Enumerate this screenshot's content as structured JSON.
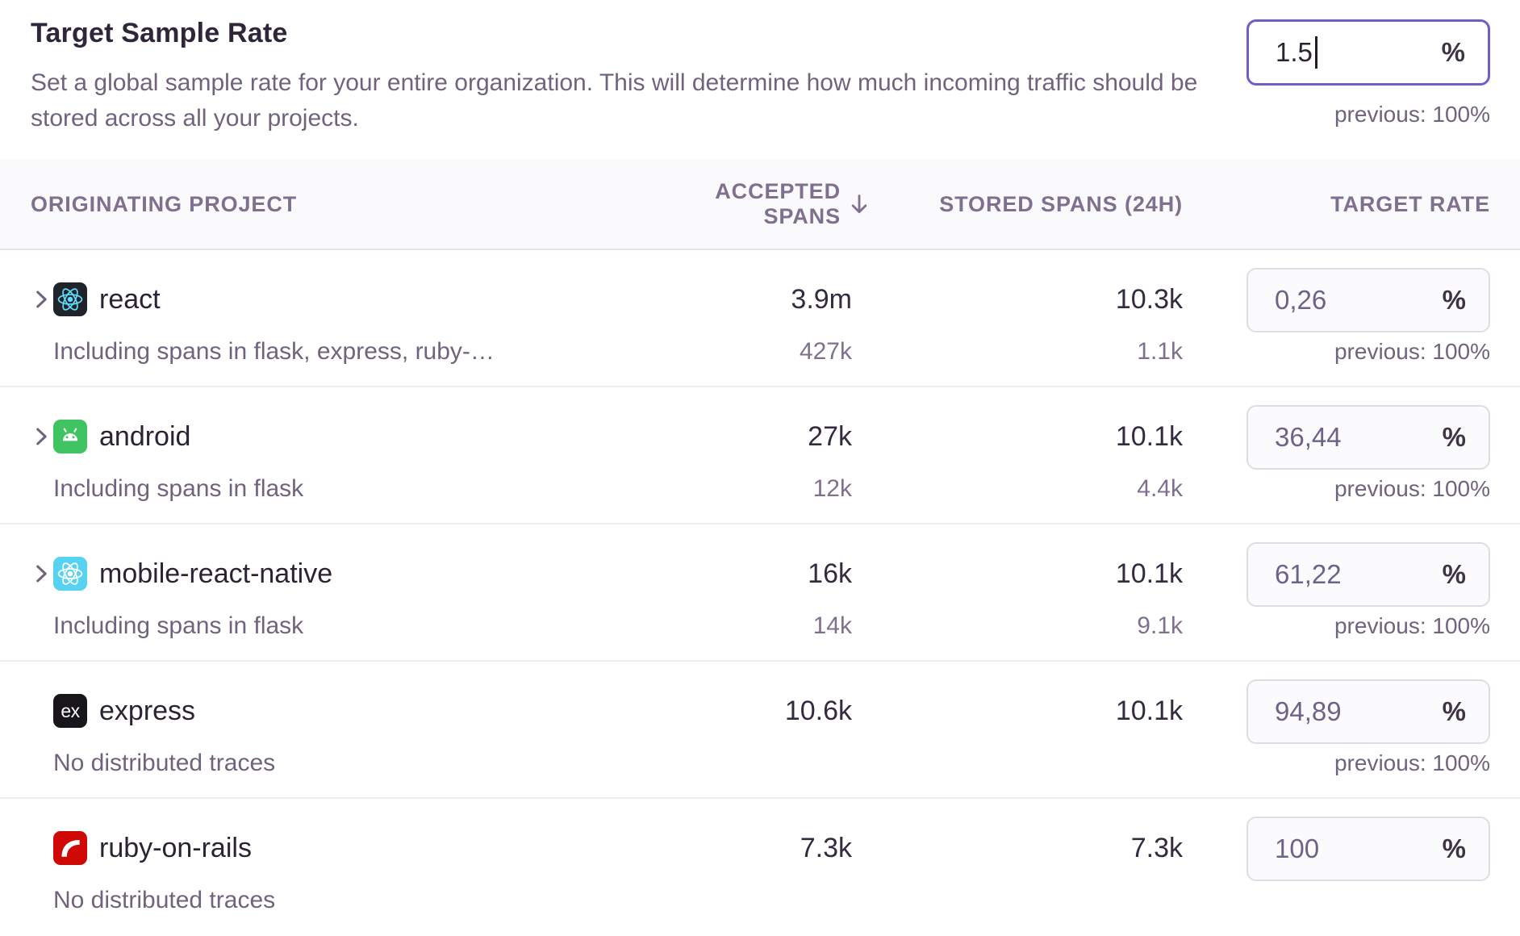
{
  "header": {
    "title": "Target Sample Rate",
    "description": "Set a global sample rate for your entire organization. This will determine how much incoming traffic should be stored across all your projects.",
    "input": {
      "value": "1.5",
      "suffix": "%"
    },
    "previous": "previous: 100%"
  },
  "table": {
    "columns": {
      "project": "Originating Project",
      "accepted": "Accepted Spans",
      "accepted_sort_icon": "arrow-down",
      "stored": "Stored Spans (24h)",
      "rate": "Target Rate"
    },
    "rows": [
      {
        "project": "react",
        "icon": "react-icon",
        "icon_bg": "#20232A",
        "logo_color": "#61DAFB",
        "expandable": true,
        "subtext": "Including spans in flask, express, ruby-…",
        "accepted": "3.9m",
        "accepted_sub": "427k",
        "stored": "10.3k",
        "stored_sub": "1.1k",
        "rate": "0,26",
        "suffix": "%",
        "previous": "previous: 100%"
      },
      {
        "project": "android",
        "icon": "android-icon",
        "icon_bg": "#40C361",
        "logo_color": "#FFFFFF",
        "expandable": true,
        "subtext": "Including spans in flask",
        "accepted": "27k",
        "accepted_sub": "12k",
        "stored": "10.1k",
        "stored_sub": "4.4k",
        "rate": "36,44",
        "suffix": "%",
        "previous": "previous: 100%"
      },
      {
        "project": "mobile-react-native",
        "icon": "react-native-icon",
        "icon_bg": "#58D2F1",
        "logo_color": "#FFFFFF",
        "expandable": true,
        "subtext": "Including spans in flask",
        "accepted": "16k",
        "accepted_sub": "14k",
        "stored": "10.1k",
        "stored_sub": "9.1k",
        "rate": "61,22",
        "suffix": "%",
        "previous": "previous: 100%"
      },
      {
        "project": "express",
        "icon": "express-icon",
        "icon_bg": "#18161B",
        "logo_color": "#FFFFFF",
        "expandable": false,
        "subtext": "No distributed traces",
        "accepted": "10.6k",
        "accepted_sub": "",
        "stored": "10.1k",
        "stored_sub": "",
        "rate": "94,89",
        "suffix": "%",
        "previous": "previous: 100%"
      },
      {
        "project": "ruby-on-rails",
        "icon": "rails-icon",
        "icon_bg": "#CE0906",
        "logo_color": "#FFFFFF",
        "expandable": false,
        "subtext": "No distributed traces",
        "accepted": "7.3k",
        "accepted_sub": "",
        "stored": "7.3k",
        "stored_sub": "",
        "rate": "100",
        "suffix": "%",
        "previous": ""
      }
    ]
  },
  "colors": {
    "accent": "#6C5FC7",
    "text_dark": "#2B2233",
    "text_muted": "#71637E",
    "header_text": "#80708F",
    "header_band": "#FAF9FB",
    "row_border": "#EFEAF3",
    "input_border": "#E0DCE5",
    "input_bg": "#FBFAFC"
  }
}
